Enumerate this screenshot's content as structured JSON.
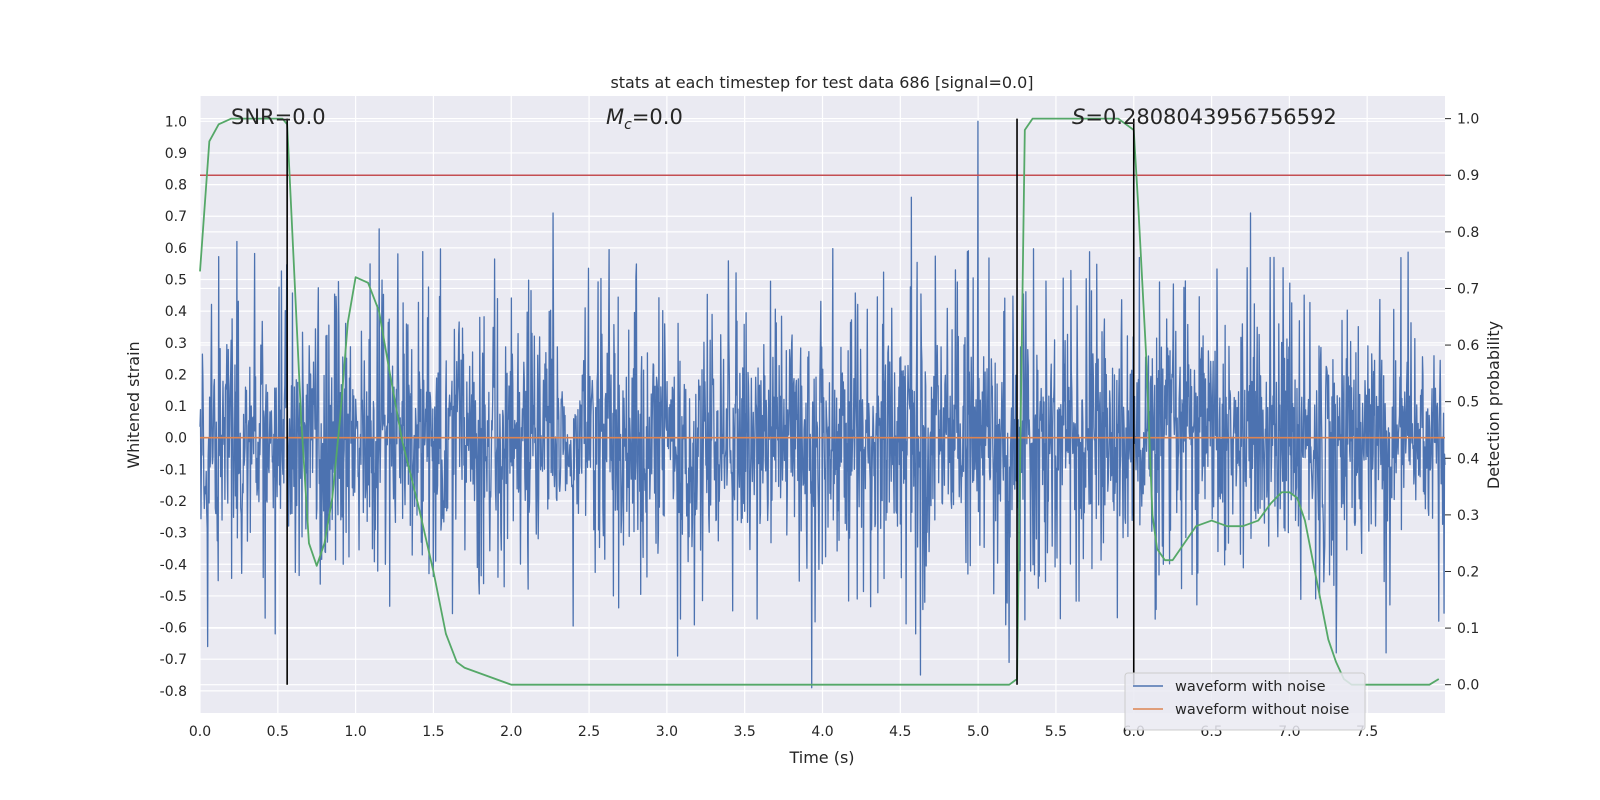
{
  "chart_data": {
    "type": "line",
    "title": "stats at each timestep for test data 686 [signal=0.0]",
    "xlabel": "Time (s)",
    "ylabel_left": "Whitened strain",
    "ylabel_right": "Detection probability",
    "xlim": [
      0.0,
      8.0
    ],
    "ylim_left": [
      -0.87,
      1.08
    ],
    "ylim_right": [
      -0.05,
      1.04
    ],
    "x_ticks": [
      "0.0",
      "0.5",
      "1.0",
      "1.5",
      "2.0",
      "2.5",
      "3.0",
      "3.5",
      "4.0",
      "4.5",
      "5.0",
      "5.5",
      "6.0",
      "6.5",
      "7.0",
      "7.5"
    ],
    "y_ticks_left": [
      "-0.8",
      "-0.7",
      "-0.6",
      "-0.5",
      "-0.4",
      "-0.3",
      "-0.2",
      "-0.1",
      "0.0",
      "0.1",
      "0.2",
      "0.3",
      "0.4",
      "0.5",
      "0.6",
      "0.7",
      "0.8",
      "0.9",
      "1.0"
    ],
    "y_ticks_right": [
      "0.0",
      "0.1",
      "0.2",
      "0.3",
      "0.4",
      "0.5",
      "0.6",
      "0.7",
      "0.8",
      "0.9",
      "1.0"
    ],
    "grid": true,
    "legend_position": "lower-right",
    "annotations": {
      "snr_prefix": "SNR=",
      "snr_value": "0.0",
      "mc_symbol": "M",
      "mc_subscript": "c",
      "mc_value": "=0.0",
      "s_symbol": "S",
      "s_value": "=0.2808043956756592"
    },
    "series": [
      {
        "name": "waveform with noise",
        "axis": "left",
        "color": "#4c72b0",
        "note_kind": "dense noise trace",
        "envelope_typical": [
          -0.25,
          0.28
        ],
        "notable_peaks": [
          {
            "x": 1.15,
            "y": 0.66
          },
          {
            "x": 2.27,
            "y": 0.71
          },
          {
            "x": 4.57,
            "y": 0.76
          },
          {
            "x": 5.0,
            "y": 1.0
          },
          {
            "x": 6.75,
            "y": 0.71
          },
          {
            "x": 3.93,
            "y": -0.79
          },
          {
            "x": 4.63,
            "y": -0.75
          },
          {
            "x": 5.2,
            "y": -0.71
          },
          {
            "x": 3.07,
            "y": -0.69
          },
          {
            "x": 7.3,
            "y": -0.68
          },
          {
            "x": 7.62,
            "y": -0.68
          },
          {
            "x": 0.05,
            "y": -0.66
          }
        ]
      },
      {
        "name": "waveform without noise",
        "axis": "left",
        "color": "#dd8452",
        "x": [
          0.0,
          8.0
        ],
        "y": [
          0.0,
          0.0
        ]
      },
      {
        "axis": "right",
        "color": "#55a868",
        "x": [
          0.0,
          0.06,
          0.12,
          0.2,
          0.3,
          0.4,
          0.48,
          0.53,
          0.56,
          0.6,
          0.65,
          0.7,
          0.75,
          0.8,
          0.85,
          0.9,
          0.95,
          1.0,
          1.08,
          1.15,
          1.22,
          1.3,
          1.4,
          1.5,
          1.58,
          1.65,
          1.7,
          2.0,
          3.0,
          4.0,
          5.0,
          5.2,
          5.25,
          5.3,
          5.35,
          5.45,
          5.7,
          5.9,
          5.95,
          6.0,
          6.03,
          6.08,
          6.12,
          6.15,
          6.2,
          6.25,
          6.3,
          6.4,
          6.5,
          6.6,
          6.7,
          6.8,
          6.88,
          6.95,
          7.0,
          7.05,
          7.1,
          7.15,
          7.2,
          7.25,
          7.3,
          7.35,
          7.4,
          7.5,
          7.6,
          7.7,
          7.8,
          7.9,
          7.96
        ],
        "y": [
          0.73,
          0.96,
          0.99,
          1.0,
          1.0,
          1.0,
          1.0,
          1.0,
          0.99,
          0.76,
          0.47,
          0.25,
          0.21,
          0.25,
          0.33,
          0.47,
          0.64,
          0.72,
          0.71,
          0.66,
          0.55,
          0.43,
          0.32,
          0.2,
          0.09,
          0.04,
          0.03,
          0.0,
          0.0,
          0.0,
          0.0,
          0.0,
          0.01,
          0.98,
          1.0,
          1.0,
          1.0,
          1.0,
          0.99,
          0.98,
          0.84,
          0.58,
          0.3,
          0.24,
          0.22,
          0.22,
          0.24,
          0.28,
          0.29,
          0.28,
          0.28,
          0.29,
          0.32,
          0.34,
          0.34,
          0.33,
          0.29,
          0.22,
          0.15,
          0.08,
          0.04,
          0.01,
          0.0,
          0.0,
          0.0,
          0.0,
          0.0,
          0.0,
          0.01
        ]
      }
    ],
    "threshold_line": {
      "axis": "right",
      "y": 0.9,
      "color": "#c44e52"
    },
    "vertical_markers": {
      "axis": "right",
      "color": "#000000",
      "x": [
        0.56,
        5.25,
        6.0
      ],
      "y_from": 0.0,
      "y_to": 1.0
    }
  }
}
